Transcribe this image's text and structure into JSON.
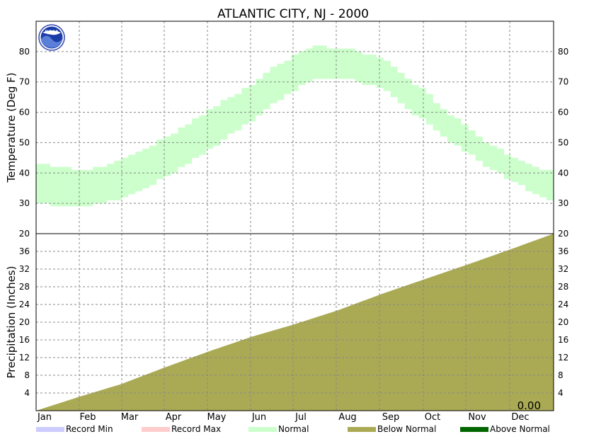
{
  "chart_data": {
    "type": "area",
    "title": "ATLANTIC CITY, NJ - 2000",
    "panels": [
      {
        "name": "temperature",
        "ylabel": "Temperature (Deg F)",
        "ylim": [
          20,
          90
        ],
        "yticks": [
          30,
          40,
          50,
          60,
          70,
          80
        ],
        "series": [
          {
            "name": "Normal",
            "color": "#ccffcc",
            "x": [
              "Jan 1",
              "Jan 15",
              "Feb 1",
              "Feb 15",
              "Mar 1",
              "Mar 15",
              "Apr 1",
              "Apr 15",
              "May 1",
              "May 15",
              "Jun 1",
              "Jun 15",
              "Jul 1",
              "Jul 15",
              "Aug 1",
              "Aug 15",
              "Sep 1",
              "Sep 15",
              "Oct 1",
              "Oct 15",
              "Nov 1",
              "Nov 15",
              "Dec 1",
              "Dec 15",
              "Dec 31"
            ],
            "low": [
              30,
              29,
              29,
              30,
              32,
              35,
              39,
              43,
              48,
              53,
              58,
              63,
              68,
              71,
              71,
              70,
              67,
              62,
              56,
              51,
              46,
              41,
              37,
              33,
              30
            ],
            "high": [
              43,
              42,
              41,
              42,
              45,
              48,
              52,
              56,
              61,
              65,
              70,
              75,
              79,
              82,
              81,
              80,
              77,
              72,
              66,
              60,
              54,
              49,
              45,
              42,
              40
            ]
          }
        ]
      },
      {
        "name": "precipitation",
        "ylabel": "Precipitation (Inches)",
        "ylim": [
          0,
          40
        ],
        "yticks": [
          4,
          8,
          12,
          16,
          20,
          24,
          28,
          32,
          36
        ],
        "yticks_right_top": "20",
        "series": [
          {
            "name": "Below Normal",
            "color": "#aaaa55",
            "x": [
              "Jan 1",
              "Feb 1",
              "Mar 1",
              "Apr 1",
              "May 1",
              "Jun 1",
              "Jul 1",
              "Aug 1",
              "Sep 1",
              "Oct 1",
              "Nov 1",
              "Dec 1",
              "Dec 31"
            ],
            "values": [
              0.0,
              3.2,
              6.0,
              9.8,
              13.3,
              16.7,
              19.5,
              22.7,
              26.4,
              29.7,
              33.1,
              36.5,
              40.0
            ]
          }
        ]
      }
    ],
    "months": [
      "Jan",
      "Feb",
      "Mar",
      "Apr",
      "May",
      "Jun",
      "Jul",
      "Aug",
      "Sep",
      "Oct",
      "Nov",
      "Dec"
    ],
    "counter": "0.00",
    "grid": true,
    "legend_position": "bottom",
    "legend": [
      {
        "label": "Record Min",
        "color": "#ccccff"
      },
      {
        "label": "Record Max",
        "color": "#ffcccc"
      },
      {
        "label": "Normal",
        "color": "#ccffcc"
      },
      {
        "label": "Below Normal",
        "color": "#aaaa55"
      },
      {
        "label": "Above Normal",
        "color": "#006600"
      }
    ],
    "logo_text": "NOAA"
  }
}
